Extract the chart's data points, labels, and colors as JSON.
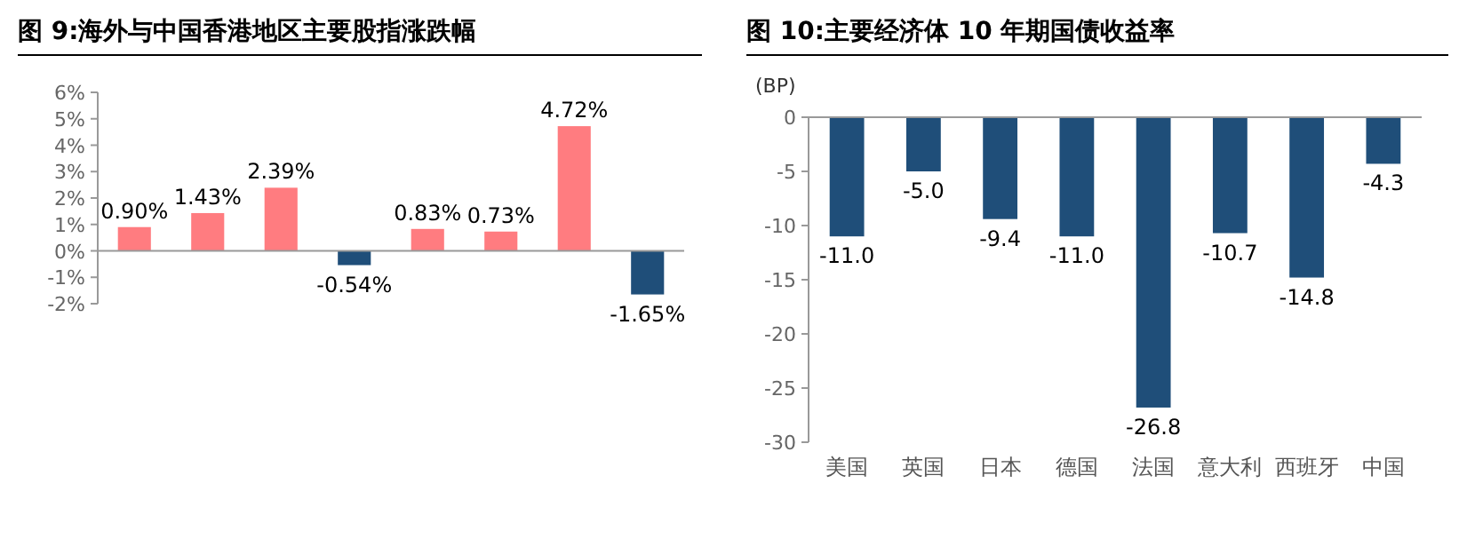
{
  "chart_data": [
    {
      "type": "bar",
      "title": "图 9:海外与中国香港地区主要股指涨跌幅",
      "categories": [
        null,
        null,
        null,
        null,
        null,
        null,
        null,
        null
      ],
      "values": [
        0.9,
        1.43,
        2.39,
        -0.54,
        0.83,
        0.73,
        4.72,
        -1.65
      ],
      "colors": [
        "#ff7c80",
        "#ff7c80",
        "#ff7c80",
        "#1f4e79",
        "#ff7c80",
        "#ff7c80",
        "#ff7c80",
        "#1f4e79"
      ],
      "value_labels": [
        "0.90%",
        "1.43%",
        "2.39%",
        "-0.54%",
        "0.83%",
        "0.73%",
        "4.72%",
        "-1.65%"
      ],
      "ylim": [
        -2,
        6
      ],
      "yticks": [
        {
          "value": -2,
          "label": "-2%"
        },
        {
          "value": -1,
          "label": "-1%"
        },
        {
          "value": 0,
          "label": "0%"
        },
        {
          "value": 1,
          "label": "1%"
        },
        {
          "value": 2,
          "label": "2%"
        },
        {
          "value": 3,
          "label": "3%"
        },
        {
          "value": 4,
          "label": "4%"
        },
        {
          "value": 5,
          "label": "5%"
        },
        {
          "value": 6,
          "label": "6%"
        }
      ]
    },
    {
      "type": "bar",
      "title": "图 10:主要经济体 10 年期国债收益率",
      "ylabel": "(BP)",
      "categories": [
        "美国",
        "英国",
        "日本",
        "德国",
        "法国",
        "意大利",
        "西班牙",
        "中国"
      ],
      "series": [
        {
          "color": "#1f4e79",
          "values": [
            -11.0,
            -5.0,
            -9.4,
            -11.0,
            -26.8,
            -10.7,
            -14.8,
            -4.3
          ]
        }
      ],
      "value_labels": [
        "-11.0",
        "-5.0",
        "-9.4",
        "-11.0",
        "-26.8",
        "-10.7",
        "-14.8",
        "-4.3"
      ],
      "ylim": [
        -30,
        0
      ],
      "yticks": [
        -30,
        -25,
        -20,
        -15,
        -10,
        -5,
        0
      ]
    }
  ]
}
